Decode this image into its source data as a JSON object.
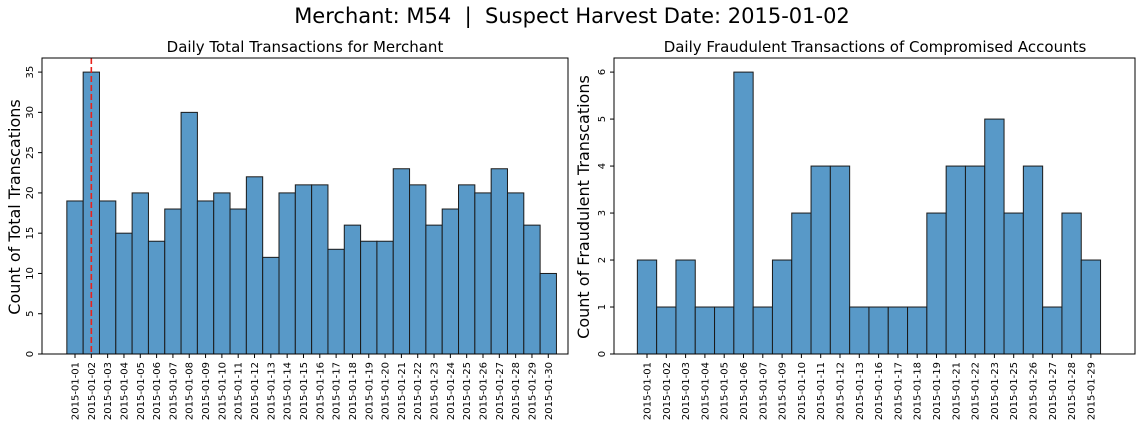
{
  "suptitle": "Merchant: M54  |  Suspect Harvest Date: 2015-01-02",
  "colors": {
    "bar_fill": "#5899c8",
    "bar_edge": "#1a1a1a",
    "marker_line": "#e8221b"
  },
  "chart_data": [
    {
      "type": "bar",
      "title": "Daily Total Transactions for Merchant",
      "xlabel": "",
      "ylabel": "Count of Total Transcations",
      "categories": [
        "2015-01-01",
        "2015-01-02",
        "2015-01-03",
        "2015-01-04",
        "2015-01-05",
        "2015-01-06",
        "2015-01-07",
        "2015-01-08",
        "2015-01-09",
        "2015-01-10",
        "2015-01-11",
        "2015-01-12",
        "2015-01-13",
        "2015-01-14",
        "2015-01-15",
        "2015-01-16",
        "2015-01-17",
        "2015-01-18",
        "2015-01-19",
        "2015-01-20",
        "2015-01-21",
        "2015-01-22",
        "2015-01-23",
        "2015-01-24",
        "2015-01-25",
        "2015-01-26",
        "2015-01-27",
        "2015-01-28",
        "2015-01-29",
        "2015-01-30"
      ],
      "values": [
        19,
        35,
        19,
        15,
        20,
        14,
        18,
        30,
        19,
        20,
        18,
        22,
        12,
        20,
        21,
        21,
        13,
        16,
        14,
        14,
        23,
        21,
        16,
        18,
        21,
        20,
        23,
        20,
        16,
        10
      ],
      "yticks": [
        0,
        5,
        10,
        15,
        20,
        25,
        30,
        35
      ],
      "ylim": [
        0,
        36.75
      ],
      "marker": {
        "category": "2015-01-02",
        "style": "dashed vertical line"
      },
      "grid": false
    },
    {
      "type": "bar",
      "title": "Daily Fraudulent Transactions of Compromised Accounts",
      "xlabel": "",
      "ylabel": "Count of Fraudulent Transcations",
      "categories": [
        "2015-01-01",
        "2015-01-02",
        "2015-01-03",
        "2015-01-04",
        "2015-01-05",
        "2015-01-06",
        "2015-01-07",
        "2015-01-09",
        "2015-01-10",
        "2015-01-11",
        "2015-01-12",
        "2015-01-13",
        "2015-01-16",
        "2015-01-17",
        "2015-01-18",
        "2015-01-19",
        "2015-01-21",
        "2015-01-22",
        "2015-01-23",
        "2015-01-25",
        "2015-01-26",
        "2015-01-27",
        "2015-01-28",
        "2015-01-29"
      ],
      "values": [
        2,
        1,
        2,
        1,
        1,
        6,
        1,
        2,
        3,
        4,
        4,
        1,
        1,
        1,
        1,
        3,
        4,
        4,
        5,
        3,
        4,
        1,
        3,
        2
      ],
      "yticks": [
        0,
        1,
        2,
        3,
        4,
        5,
        6
      ],
      "ylim": [
        0,
        6.3
      ],
      "grid": false
    }
  ]
}
